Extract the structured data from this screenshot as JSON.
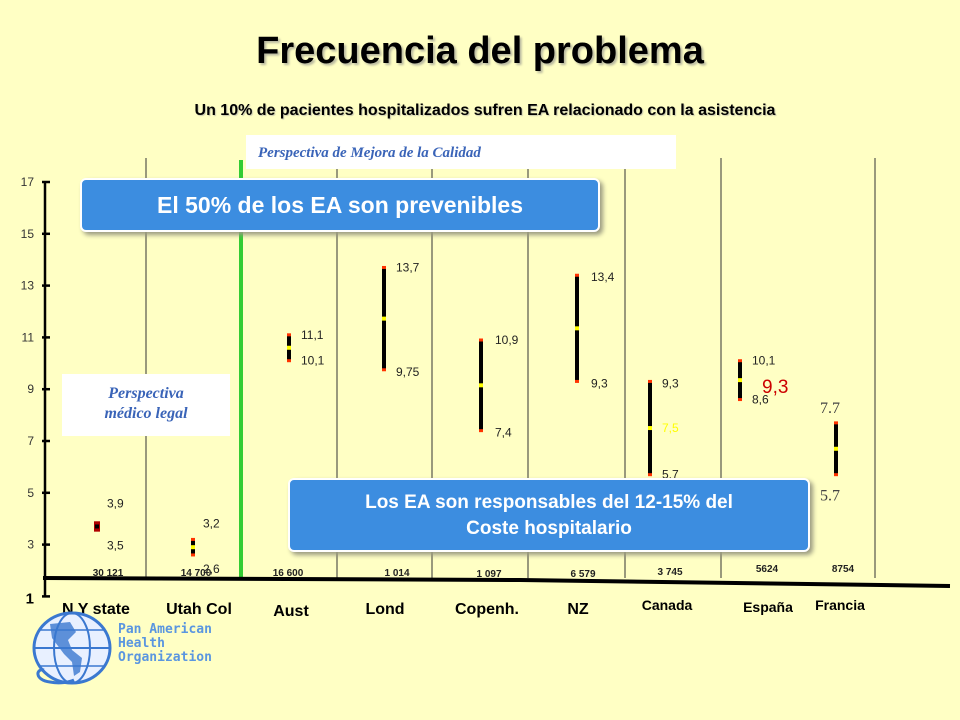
{
  "header": {
    "title": "Frecuencia del problema",
    "subtitle": "Un 10% de pacientes hospitalizados sufren EA relacionado con la asistencia"
  },
  "callouts": {
    "quality": "Perspectiva de Mejora de la Calidad",
    "legal_line1": "Perspectiva",
    "legal_line2": "médico legal",
    "preventable": "El 50% de los EA son prevenibles",
    "cost_line1": "Los EA son responsables del 12-15% del",
    "cost_line2": "Coste hospitalario"
  },
  "organization": {
    "line1": "Pan American",
    "line2": "Health",
    "line3": "Organization"
  },
  "colors": {
    "background": "#ffffc4",
    "banner": "#3c8de0",
    "divider": "#33cc33",
    "range_line": "#000000",
    "endpoint": "#ff3300",
    "midpoint": "#ffff00",
    "highlight_value": "#cc0000"
  },
  "chart_data": {
    "type": "range",
    "ylim": [
      1,
      17
    ],
    "yticks": [
      1,
      3,
      5,
      7,
      9,
      11,
      13,
      15,
      17
    ],
    "categories": [
      "N Y state",
      "Utah Col",
      "Aust",
      "Lond",
      "Copenh.",
      "NZ",
      "Canada",
      "España",
      "Francia"
    ],
    "sample_sizes": [
      "30 121",
      "14 700",
      "16 600",
      "1 014",
      "1 097",
      "6 579",
      "3 745",
      "5624",
      "8754"
    ],
    "series": [
      {
        "low": [
          3.5,
          2.6,
          10.1,
          9.75,
          7.4,
          9.3,
          5.7,
          8.6,
          5.7
        ],
        "high": [
          3.9,
          3.2,
          11.1,
          13.7,
          10.9,
          13.4,
          9.3,
          10.1,
          7.7
        ],
        "low_labels": [
          "3,5",
          "2,6",
          "10,1",
          "9,75",
          "7,4",
          "9,3",
          "5,7",
          "8,6",
          "5.7"
        ],
        "high_labels": [
          "3,9",
          "3,2",
          "11,1",
          "13,7",
          "10,9",
          "13,4",
          "9,3",
          "10,1",
          "7.7"
        ],
        "mid_labels": [
          "",
          "",
          "",
          "",
          "",
          "",
          "7,5",
          "9,3",
          ""
        ]
      }
    ]
  }
}
